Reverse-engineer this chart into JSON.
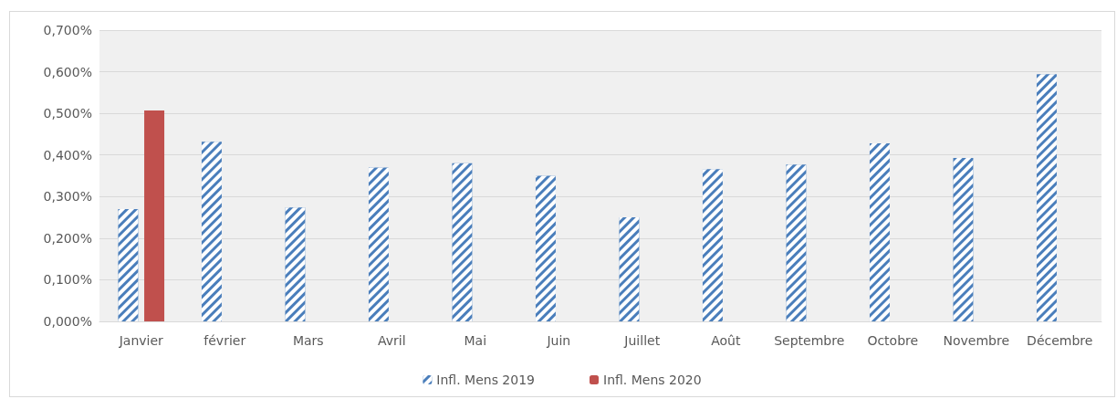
{
  "chart_data": {
    "type": "bar",
    "categories": [
      "Janvier",
      "février",
      "Mars",
      "Avril",
      "Mai",
      "Juin",
      "Juillet",
      "Août",
      "Septembre",
      "Octobre",
      "Novembre",
      "Décembre"
    ],
    "series": [
      {
        "name": "Infl. Mens 2019",
        "color": "#4a7ebb",
        "values": [
          0.27,
          0.432,
          0.274,
          0.37,
          0.38,
          0.35,
          0.25,
          0.366,
          0.377,
          0.428,
          0.393,
          0.594
        ]
      },
      {
        "name": "Infl. Mens 2020",
        "color": "#c0504d",
        "values": [
          0.507,
          null,
          null,
          null,
          null,
          null,
          null,
          null,
          null,
          null,
          null,
          null
        ]
      }
    ],
    "ylim": [
      0,
      0.7
    ],
    "yticks": [
      {
        "value": 0,
        "label": "0,000%"
      },
      {
        "value": 0.1,
        "label": "0,100%"
      },
      {
        "value": 0.2,
        "label": "0,200%"
      },
      {
        "value": 0.3,
        "label": "0,300%"
      },
      {
        "value": 0.4,
        "label": "0,400%"
      },
      {
        "value": 0.5,
        "label": "0,500%"
      },
      {
        "value": 0.6,
        "label": "0,600%"
      },
      {
        "value": 0.7,
        "label": "0,700%"
      }
    ],
    "grid": "y",
    "legend": "bottom"
  }
}
